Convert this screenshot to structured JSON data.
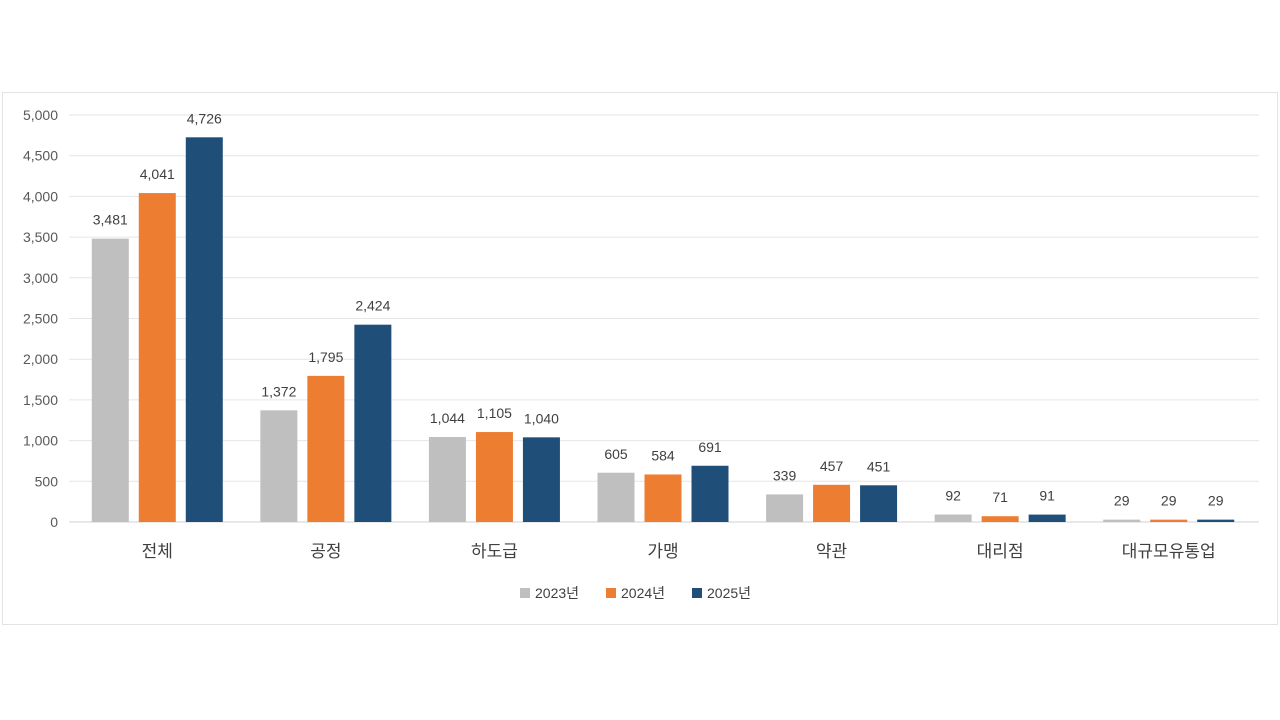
{
  "chart_data": {
    "type": "bar",
    "categories": [
      "전체",
      "공정",
      "하도급",
      "가맹",
      "약관",
      "대리점",
      "대규모유통업"
    ],
    "series": [
      {
        "name": "2023년",
        "color": "#bfbfbf",
        "values": [
          3481,
          1372,
          1044,
          605,
          339,
          92,
          29
        ]
      },
      {
        "name": "2024년",
        "color": "#ed7d31",
        "values": [
          4041,
          1795,
          1105,
          584,
          457,
          71,
          29
        ]
      },
      {
        "name": "2025년",
        "color": "#1f4e79",
        "values": [
          4726,
          2424,
          1040,
          691,
          451,
          91,
          29
        ]
      }
    ],
    "data_labels": [
      [
        "3,481",
        "1,372",
        "1,044",
        "605",
        "339",
        "92",
        "29"
      ],
      [
        "4,041",
        "1,795",
        "1,105",
        "584",
        "457",
        "71",
        "29"
      ],
      [
        "4,726",
        "2,424",
        "1,040",
        "691",
        "451",
        "91",
        "29"
      ]
    ],
    "yticks": [
      0,
      500,
      1000,
      1500,
      2000,
      2500,
      3000,
      3500,
      4000,
      4500,
      5000
    ],
    "ytick_labels": [
      "0",
      "500",
      "1,000",
      "1,500",
      "2,000",
      "2,500",
      "3,000",
      "3,500",
      "4,000",
      "4,500",
      "5,000"
    ],
    "ylim": [
      0,
      5000
    ],
    "title": "",
    "xlabel": "",
    "ylabel": "",
    "grid": true,
    "legend_position": "bottom"
  }
}
